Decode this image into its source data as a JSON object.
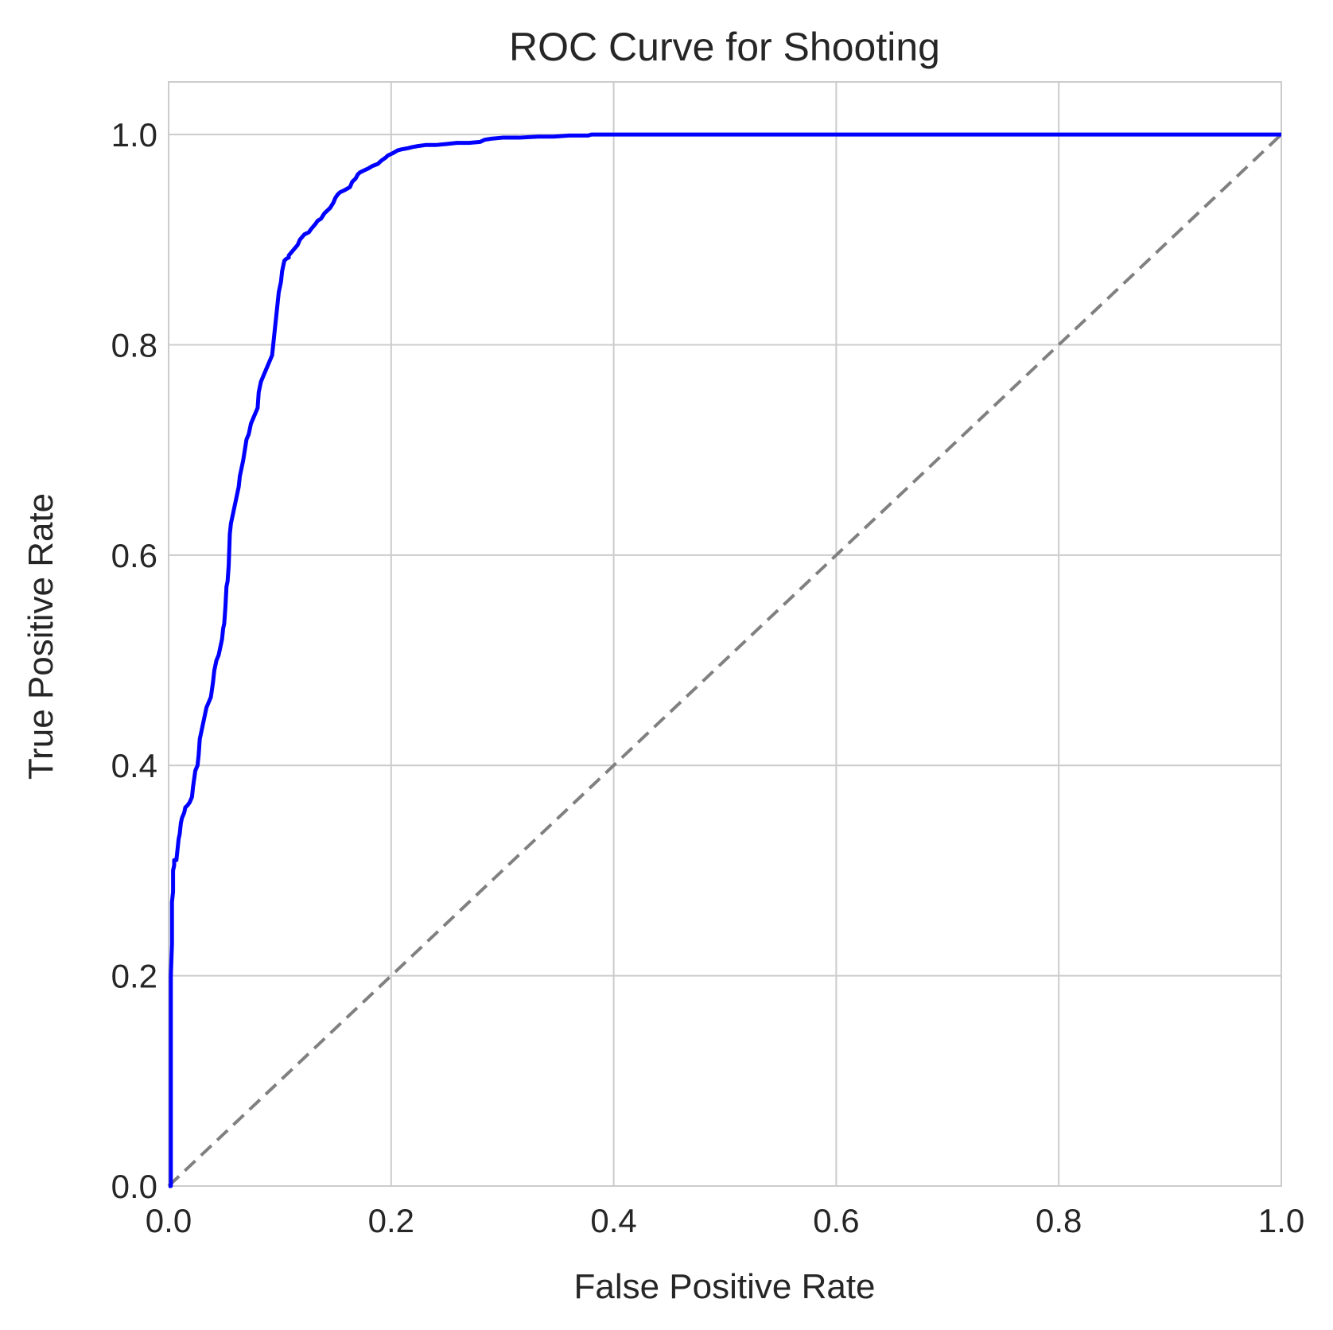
{
  "colors": {
    "background": "#ffffff",
    "grid": "#cccccc",
    "frame": "#cccccc",
    "text": "#262626",
    "roc_line": "#0000ff",
    "reference_line": "#808080"
  },
  "chart_data": {
    "type": "line",
    "title": "ROC Curve for Shooting",
    "xlabel": "False Positive Rate",
    "ylabel": "True Positive Rate",
    "xlim": [
      0.0,
      1.0
    ],
    "ylim": [
      0.0,
      1.05
    ],
    "xticks": [
      "0.0",
      "0.2",
      "0.4",
      "0.6",
      "0.8",
      "1.0"
    ],
    "yticks": [
      "0.0",
      "0.2",
      "0.4",
      "0.6",
      "0.8",
      "1.0"
    ],
    "xtick_values": [
      0.0,
      0.2,
      0.4,
      0.6,
      0.8,
      1.0
    ],
    "ytick_values": [
      0.0,
      0.2,
      0.4,
      0.6,
      0.8,
      1.0
    ],
    "grid": true,
    "legend": "none",
    "series": [
      {
        "style": "solid",
        "color": "#0000ff",
        "x": [
          0.0,
          0.002,
          0.002,
          0.003,
          0.003,
          0.004,
          0.004,
          0.005,
          0.005,
          0.007,
          0.008,
          0.009,
          0.01,
          0.011,
          0.012,
          0.014,
          0.015,
          0.017,
          0.019,
          0.021,
          0.022,
          0.024,
          0.026,
          0.027,
          0.028,
          0.03,
          0.031,
          0.032,
          0.034,
          0.036,
          0.038,
          0.04,
          0.041,
          0.043,
          0.045,
          0.046,
          0.048,
          0.049,
          0.05,
          0.051,
          0.052,
          0.053,
          0.054,
          0.055,
          0.056,
          0.057,
          0.058,
          0.06,
          0.061,
          0.063,
          0.064,
          0.066,
          0.067,
          0.07,
          0.072,
          0.073,
          0.074,
          0.076,
          0.078,
          0.08,
          0.081,
          0.083,
          0.085,
          0.087,
          0.089,
          0.091,
          0.093,
          0.095,
          0.097,
          0.099,
          0.1,
          0.101,
          0.102,
          0.103,
          0.104,
          0.106,
          0.108,
          0.108,
          0.112,
          0.116,
          0.118,
          0.122,
          0.126,
          0.128,
          0.132,
          0.134,
          0.137,
          0.14,
          0.145,
          0.148,
          0.15,
          0.152,
          0.154,
          0.158,
          0.163,
          0.165,
          0.168,
          0.17,
          0.172,
          0.176,
          0.18,
          0.183,
          0.188,
          0.191,
          0.195,
          0.197,
          0.201,
          0.206,
          0.21,
          0.215,
          0.219,
          0.224,
          0.231,
          0.24,
          0.25,
          0.259,
          0.27,
          0.28,
          0.284,
          0.29,
          0.3,
          0.315,
          0.332,
          0.346,
          0.36,
          0.377,
          0.38,
          0.45,
          0.6,
          0.8,
          1.0
        ],
        "y": [
          0.0,
          0.0,
          0.2,
          0.23,
          0.27,
          0.28,
          0.3,
          0.305,
          0.31,
          0.31,
          0.32,
          0.33,
          0.335,
          0.345,
          0.35,
          0.355,
          0.36,
          0.362,
          0.365,
          0.37,
          0.38,
          0.395,
          0.4,
          0.41,
          0.425,
          0.435,
          0.44,
          0.445,
          0.455,
          0.46,
          0.465,
          0.48,
          0.49,
          0.5,
          0.505,
          0.51,
          0.52,
          0.53,
          0.535,
          0.55,
          0.57,
          0.575,
          0.59,
          0.62,
          0.63,
          0.635,
          0.64,
          0.65,
          0.655,
          0.665,
          0.675,
          0.685,
          0.69,
          0.71,
          0.715,
          0.72,
          0.725,
          0.73,
          0.735,
          0.74,
          0.755,
          0.765,
          0.77,
          0.775,
          0.78,
          0.785,
          0.79,
          0.81,
          0.83,
          0.85,
          0.855,
          0.86,
          0.87,
          0.875,
          0.88,
          0.882,
          0.883,
          0.885,
          0.89,
          0.895,
          0.9,
          0.905,
          0.907,
          0.91,
          0.915,
          0.918,
          0.92,
          0.925,
          0.93,
          0.935,
          0.94,
          0.943,
          0.945,
          0.947,
          0.95,
          0.955,
          0.958,
          0.962,
          0.964,
          0.966,
          0.968,
          0.97,
          0.972,
          0.975,
          0.978,
          0.98,
          0.982,
          0.985,
          0.986,
          0.987,
          0.988,
          0.989,
          0.99,
          0.99,
          0.991,
          0.992,
          0.992,
          0.993,
          0.995,
          0.996,
          0.997,
          0.997,
          0.998,
          0.998,
          0.999,
          0.999,
          1.0,
          1.0,
          1.0,
          1.0,
          1.0
        ]
      },
      {
        "style": "dashed",
        "color": "#808080",
        "x": [
          0.0,
          1.0
        ],
        "y": [
          0.0,
          1.0
        ]
      }
    ]
  }
}
